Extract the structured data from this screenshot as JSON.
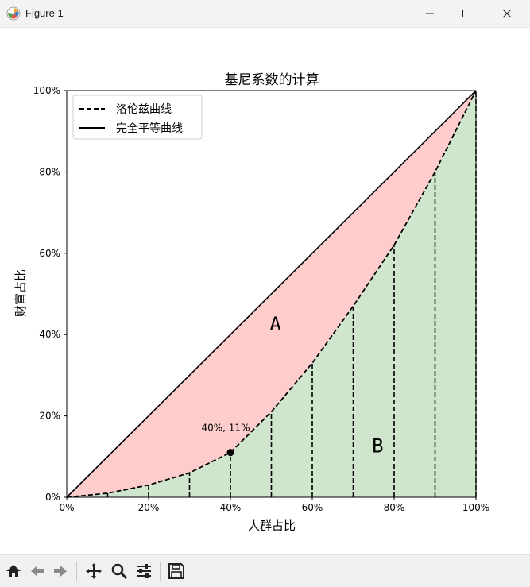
{
  "window": {
    "title": "Figure 1"
  },
  "toolbar": {
    "icons": [
      "home-icon",
      "back-arrow-icon",
      "forward-arrow-icon",
      "pan-icon",
      "zoom-icon",
      "configure-subplots-icon",
      "save-icon"
    ]
  },
  "chart_data": {
    "type": "area",
    "title": "基尼系数的计算",
    "xlabel": "人群占比",
    "ylabel": "财富占比",
    "xlim": [
      0,
      100
    ],
    "ylim": [
      0,
      100
    ],
    "x_ticks": [
      "0%",
      "20%",
      "40%",
      "60%",
      "80%",
      "100%"
    ],
    "y_ticks": [
      "0%",
      "20%",
      "40%",
      "60%",
      "80%",
      "100%"
    ],
    "legend_position": "top-left",
    "grid": false,
    "series": [
      {
        "name": "洛伦兹曲线",
        "style": "dashed",
        "color": "#000000",
        "x": [
          0,
          10,
          20,
          30,
          40,
          50,
          60,
          70,
          80,
          90,
          100
        ],
        "y": [
          0,
          1,
          3,
          6,
          11,
          21,
          33,
          47,
          62,
          80,
          100
        ]
      },
      {
        "name": "完全平等曲线",
        "style": "solid",
        "color": "#000000",
        "x": [
          0,
          100
        ],
        "y": [
          0,
          100
        ]
      }
    ],
    "regions": [
      {
        "label": "A",
        "color": "#ffcccc",
        "between": "完全平等曲线 and 洛伦兹曲线"
      },
      {
        "label": "B",
        "color": "#cfe6cc",
        "between": "洛伦兹曲线 and x-axis"
      }
    ],
    "region_label_positions": [
      {
        "label": "A",
        "x": 51,
        "y": 41
      },
      {
        "label": "B",
        "x": 76,
        "y": 11
      }
    ],
    "highlight_point": {
      "x": 40,
      "y": 11,
      "label": "40%, 11%"
    }
  }
}
